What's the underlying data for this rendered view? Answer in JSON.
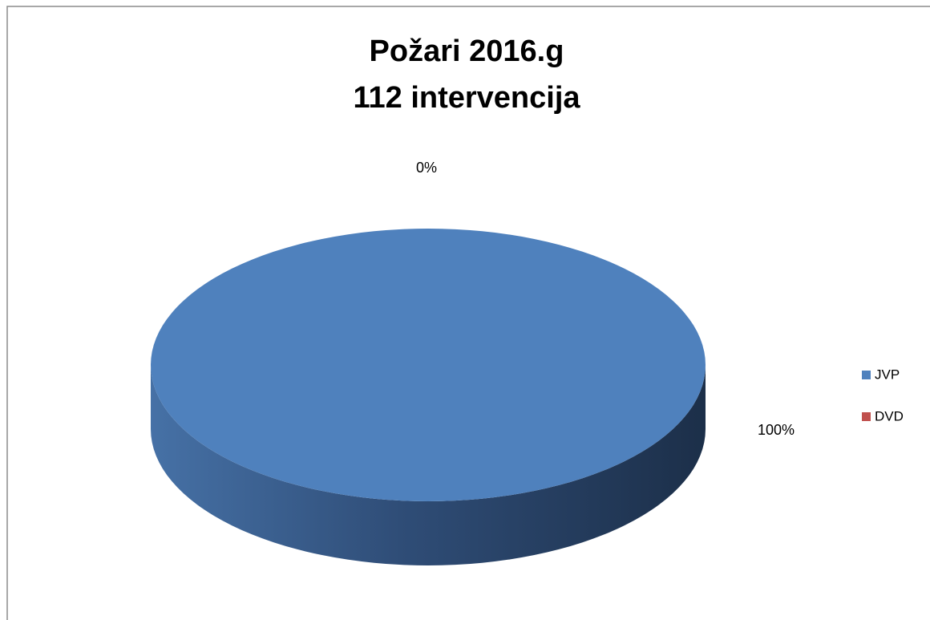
{
  "chart_data": {
    "type": "pie",
    "title": "Požari  2016.g",
    "subtitle": "112 intervencija",
    "categories": [
      "JVP",
      "DVD"
    ],
    "values": [
      100,
      0
    ],
    "value_labels": [
      "100%",
      "0%"
    ],
    "colors": [
      "#4f81bd",
      "#c0504d"
    ],
    "legend": "right"
  }
}
